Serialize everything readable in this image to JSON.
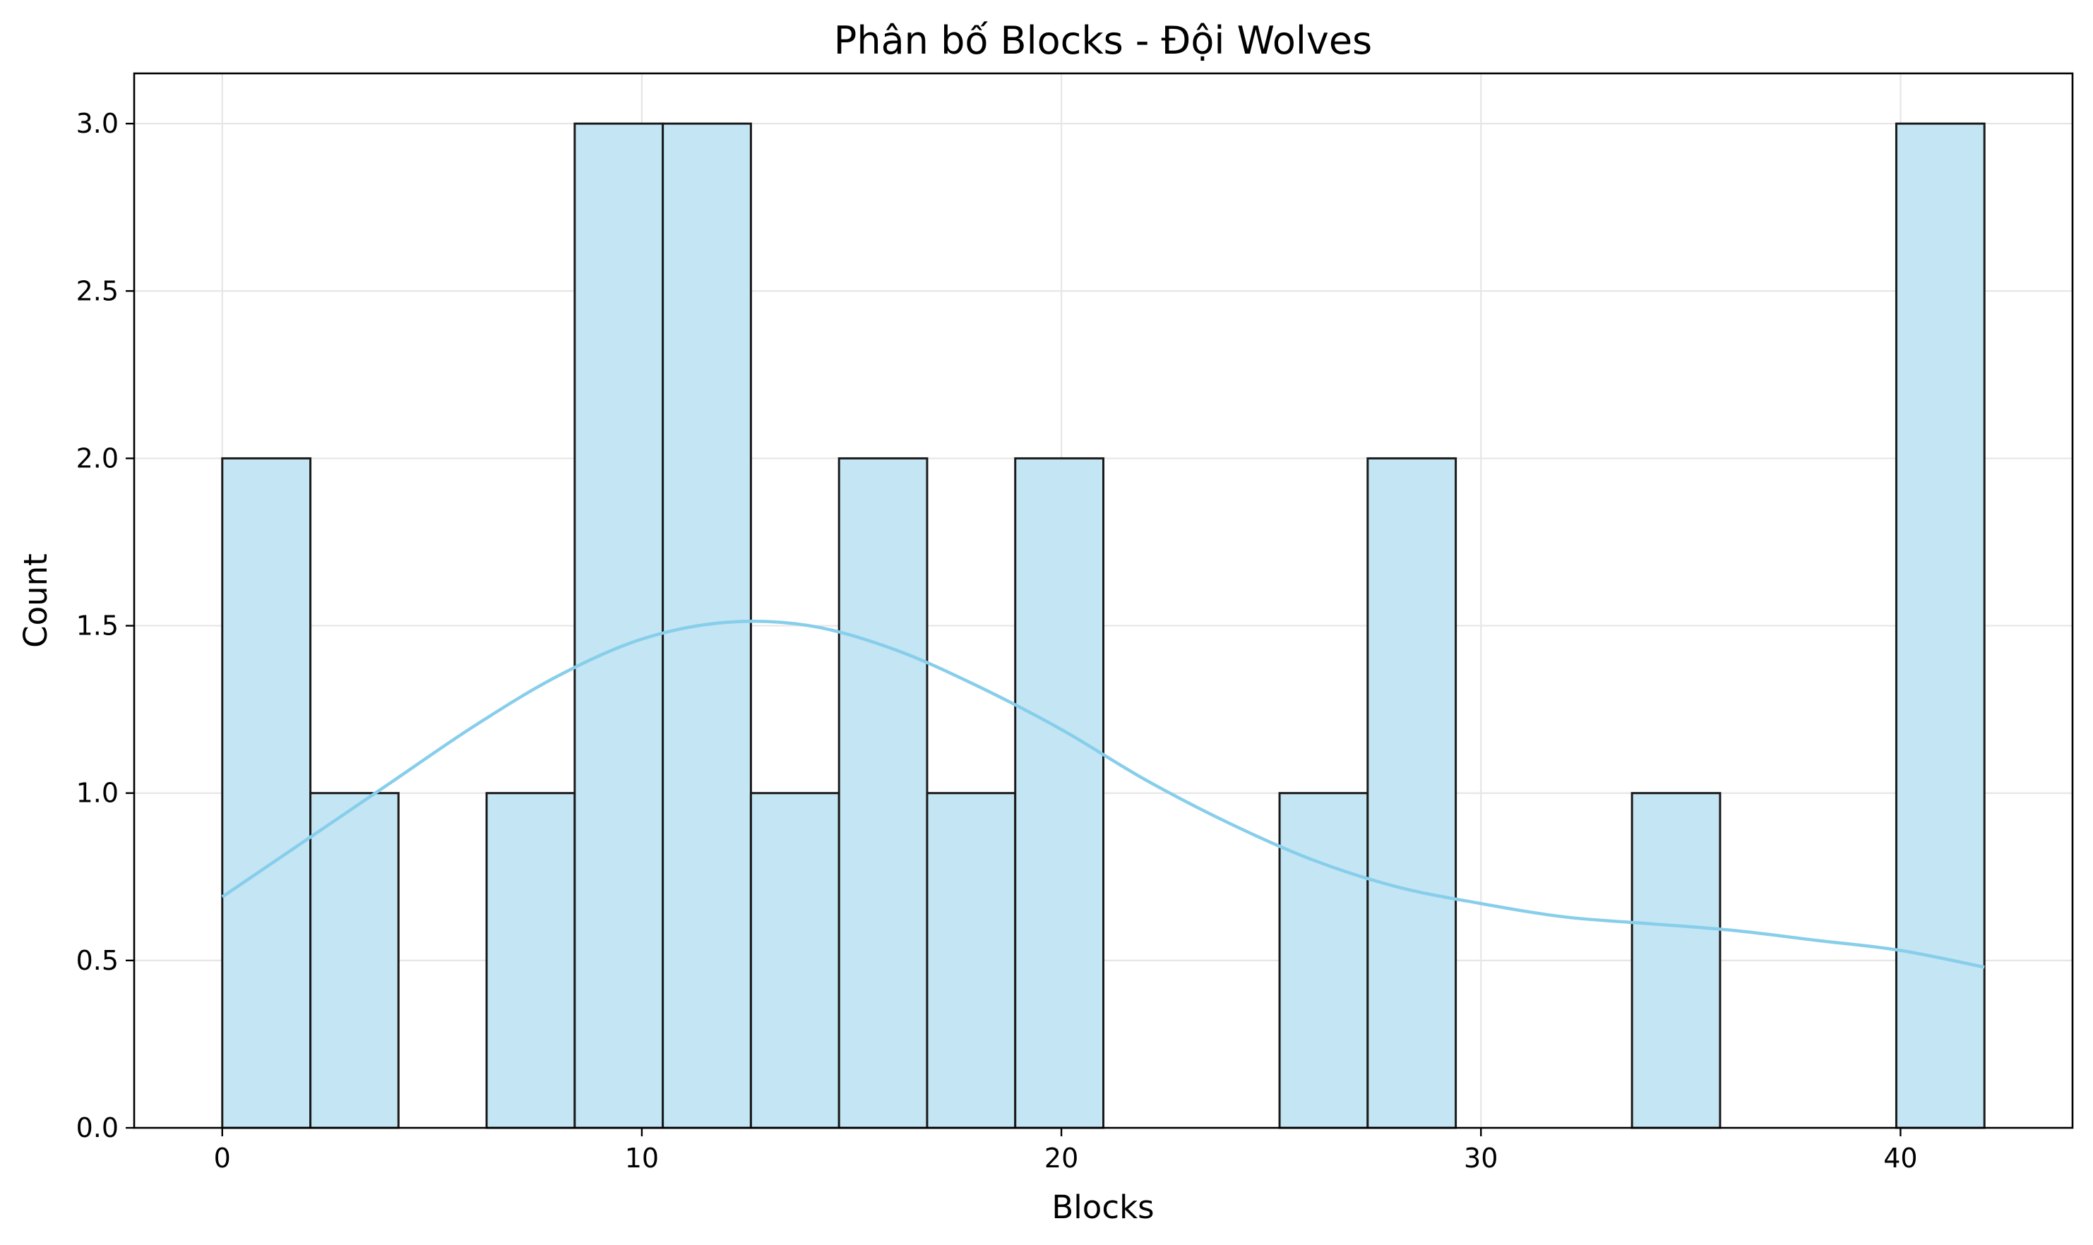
{
  "chart_data": {
    "type": "bar",
    "subtype": "histogram",
    "title": "Phân bố Blocks - Đội Wolves",
    "xlabel": "Blocks",
    "ylabel": "Count",
    "xlim": [
      -2.1,
      44.1
    ],
    "ylim": [
      0,
      3.15
    ],
    "x_ticks": [
      0,
      10,
      20,
      30,
      40
    ],
    "y_ticks": [
      0.0,
      0.5,
      1.0,
      1.5,
      2.0,
      2.5,
      3.0
    ],
    "bin_edges": [
      0,
      2.1,
      4.2,
      6.3,
      8.4,
      10.5,
      12.6,
      14.7,
      16.8,
      18.9,
      21.0,
      23.1,
      25.2,
      27.3,
      29.4,
      31.5,
      33.6,
      35.7,
      37.8,
      39.9,
      42.0
    ],
    "counts": [
      2,
      1,
      0,
      1,
      3,
      3,
      1,
      2,
      1,
      2,
      0,
      0,
      1,
      2,
      0,
      0,
      1,
      0,
      0,
      3
    ],
    "kde": {
      "x": [
        0,
        2,
        4,
        6,
        8,
        10,
        12,
        14,
        16,
        18,
        20,
        22,
        24,
        26,
        28,
        30,
        32,
        34,
        36,
        38,
        40,
        42
      ],
      "y": [
        0.69,
        0.86,
        1.03,
        1.2,
        1.35,
        1.46,
        1.51,
        1.5,
        1.43,
        1.32,
        1.19,
        1.04,
        0.91,
        0.8,
        0.72,
        0.67,
        0.63,
        0.61,
        0.59,
        0.56,
        0.53,
        0.48
      ]
    },
    "grid": true,
    "colors": {
      "bar_fill": "#c4e5f3",
      "bar_edge": "#1a1a1a",
      "kde_line": "#87ceeb"
    }
  }
}
